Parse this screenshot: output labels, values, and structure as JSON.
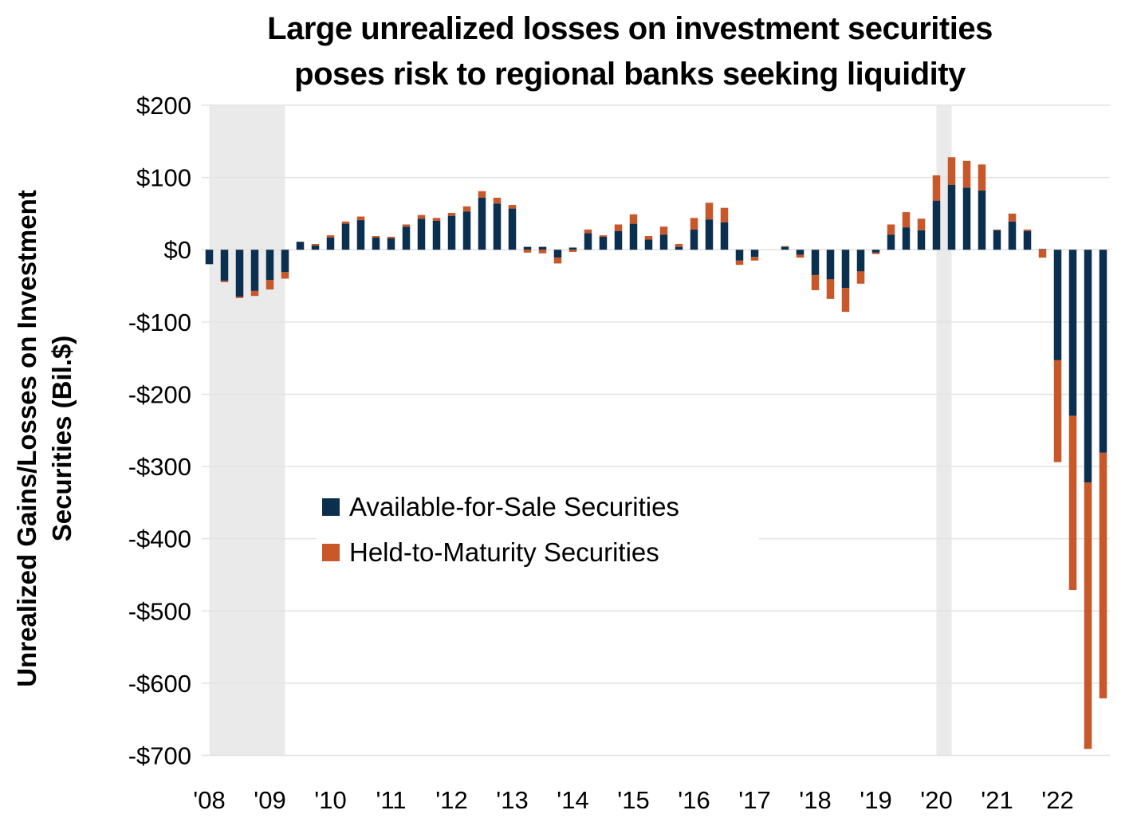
{
  "chart_data": {
    "type": "bar",
    "stacked": true,
    "title": "Large unrealized losses on investment securities poses risk to regional banks seeking liquidity",
    "title_lines": [
      "Large unrealized losses on investment securities",
      "poses risk to regional banks seeking liquidity"
    ],
    "xlabel": "",
    "ylabel": "Unrealized Gains/Losses on Investment Securities (Bil.$)",
    "ylabel_lines": [
      "Unrealized Gains/Losses on Investment",
      "Securities (Bil.$)"
    ],
    "ylim": [
      -700,
      200
    ],
    "yticks": [
      200,
      100,
      0,
      -100,
      -200,
      -300,
      -400,
      -500,
      -600,
      -700
    ],
    "ytick_labels": [
      "$200",
      "$100",
      "$0",
      "-$100",
      "-$200",
      "-$300",
      "-$400",
      "-$500",
      "-$600",
      "-$700"
    ],
    "xtick_labels": [
      "'08",
      "'09",
      "'10",
      "'11",
      "'12",
      "'13",
      "'14",
      "'15",
      "'16",
      "'17",
      "'18",
      "'19",
      "'20",
      "'21",
      "'22"
    ],
    "grid": true,
    "legend_position": "center-left",
    "categories": [
      "2008Q1",
      "2008Q2",
      "2008Q3",
      "2008Q4",
      "2009Q1",
      "2009Q2",
      "2009Q3",
      "2009Q4",
      "2010Q1",
      "2010Q2",
      "2010Q3",
      "2010Q4",
      "2011Q1",
      "2011Q2",
      "2011Q3",
      "2011Q4",
      "2012Q1",
      "2012Q2",
      "2012Q3",
      "2012Q4",
      "2013Q1",
      "2013Q2",
      "2013Q3",
      "2013Q4",
      "2014Q1",
      "2014Q2",
      "2014Q3",
      "2014Q4",
      "2015Q1",
      "2015Q2",
      "2015Q3",
      "2015Q4",
      "2016Q1",
      "2016Q2",
      "2016Q3",
      "2016Q4",
      "2017Q1",
      "2017Q2",
      "2017Q3",
      "2017Q4",
      "2018Q1",
      "2018Q2",
      "2018Q3",
      "2018Q4",
      "2019Q1",
      "2019Q2",
      "2019Q3",
      "2019Q4",
      "2020Q1",
      "2020Q2",
      "2020Q3",
      "2020Q4",
      "2021Q1",
      "2021Q2",
      "2021Q3",
      "2021Q4",
      "2022Q1",
      "2022Q2",
      "2022Q3",
      "2022Q4"
    ],
    "series": [
      {
        "name": "Available-for-Sale Securities",
        "color": "#0b2f4f",
        "values": [
          -20,
          -43,
          -65,
          -57,
          -42,
          -31,
          11,
          6,
          17,
          36,
          41,
          17,
          16,
          32,
          43,
          40,
          47,
          53,
          72,
          64,
          57,
          4,
          4,
          -11,
          3,
          23,
          18,
          26,
          36,
          14,
          21,
          4,
          28,
          42,
          38,
          -15,
          -10,
          0,
          4,
          -7,
          -35,
          -41,
          -53,
          -30,
          -4,
          21,
          31,
          27,
          68,
          90,
          86,
          82,
          27,
          39,
          26,
          1,
          -153,
          -230,
          -322,
          -281
        ]
      },
      {
        "name": "Held-to-Maturity Securities",
        "color": "#c8572a",
        "values": [
          0,
          -2,
          -2,
          -7,
          -13,
          -9,
          0,
          2,
          3,
          3,
          5,
          2,
          2,
          3,
          5,
          4,
          4,
          7,
          9,
          8,
          5,
          -4,
          -5,
          -8,
          -3,
          5,
          2,
          9,
          13,
          5,
          11,
          4,
          16,
          23,
          20,
          -6,
          -5,
          0,
          1,
          -4,
          -21,
          -27,
          -33,
          -17,
          -2,
          14,
          21,
          16,
          35,
          38,
          37,
          36,
          1,
          11,
          2,
          -11,
          -141,
          -241,
          -369,
          -340
        ]
      }
    ],
    "recession_shading": [
      {
        "start": "2008Q1",
        "end": "2009Q2"
      },
      {
        "start": "2020Q1",
        "end": "2020Q2"
      }
    ],
    "colors": {
      "recession": "#ebeaea",
      "grid": "#e3e3e3"
    }
  }
}
